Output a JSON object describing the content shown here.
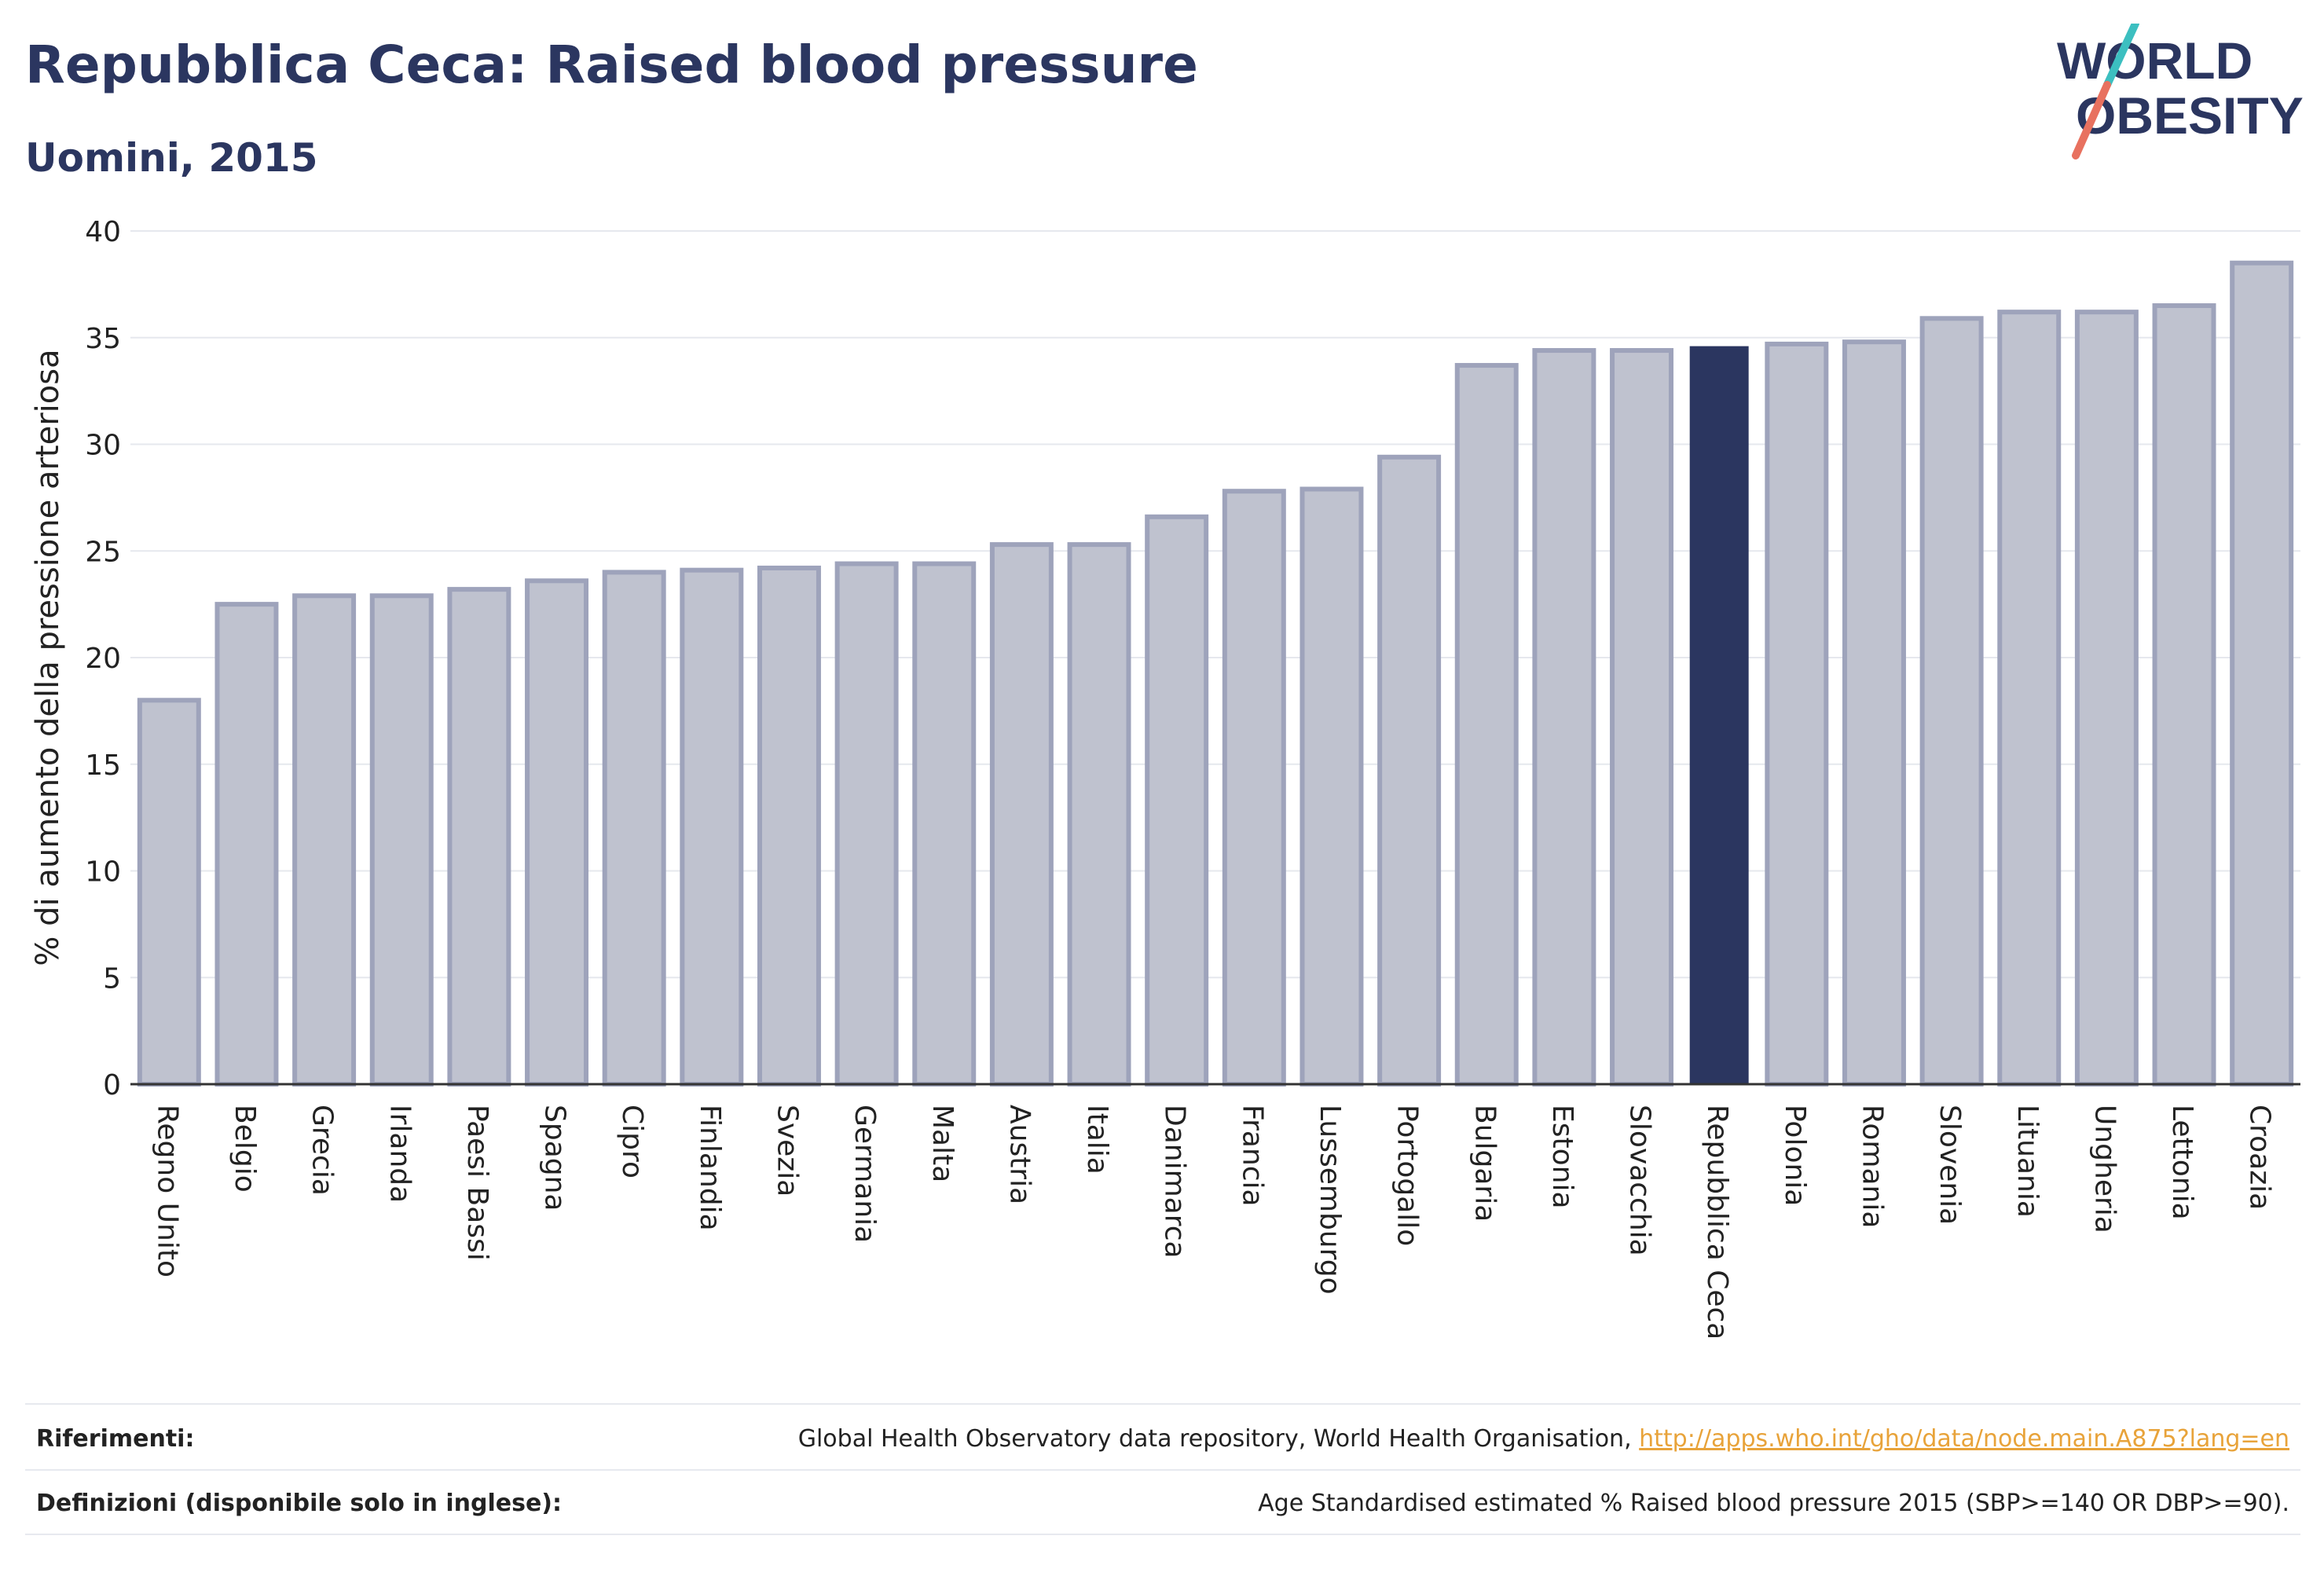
{
  "header": {
    "title": "Repubblica Ceca: Raised blood pressure",
    "subtitle": "Uomini, 2015"
  },
  "logo": {
    "line1": "WORLD",
    "line2": "OBESITY",
    "colors": {
      "text": "#2b3660",
      "slash_teal": "#3cbfc0",
      "slash_red": "#e8715f"
    }
  },
  "chart_data": {
    "type": "bar",
    "ylabel": "% di aumento della pressione arteriosa",
    "xlabel": "",
    "ylim": [
      0,
      40
    ],
    "yticks": [
      0,
      5,
      10,
      15,
      20,
      25,
      30,
      35,
      40
    ],
    "grid": true,
    "highlight": "Repubblica Ceca",
    "colors": {
      "bar": "#bfc2cf",
      "bar_border": "#9ea3bb",
      "highlight": "#2b3660",
      "grid": "#e6e8ee",
      "axis": "#333333"
    },
    "categories": [
      "Regno Unito",
      "Belgio",
      "Grecia",
      "Irlanda",
      "Paesi Bassi",
      "Spagna",
      "Cipro",
      "Finlandia",
      "Svezia",
      "Germania",
      "Malta",
      "Austria",
      "Italia",
      "Danimarca",
      "Francia",
      "Lussemburgo",
      "Portogallo",
      "Bulgaria",
      "Estonia",
      "Slovacchia",
      "Repubblica Ceca",
      "Polonia",
      "Romania",
      "Slovenia",
      "Lituania",
      "Ungheria",
      "Lettonia",
      "Croazia"
    ],
    "values": [
      18.0,
      22.5,
      22.9,
      22.9,
      23.2,
      23.6,
      24.0,
      24.1,
      24.2,
      24.4,
      24.4,
      25.3,
      25.3,
      26.6,
      27.8,
      27.9,
      29.4,
      33.7,
      34.4,
      34.4,
      34.6,
      34.7,
      34.8,
      35.9,
      36.2,
      36.2,
      36.5,
      38.5
    ]
  },
  "footer": {
    "references_label": "Riferimenti:",
    "references_text": "Global Health Observatory data repository, World Health Organisation, ",
    "references_link": "http://apps.who.int/gho/data/node.main.A875?lang=en",
    "definitions_label": "Definizioni (disponibile solo in inglese):",
    "definitions_text": "Age Standardised estimated % Raised blood pressure 2015 (SBP>=140 OR DBP>=90)."
  }
}
